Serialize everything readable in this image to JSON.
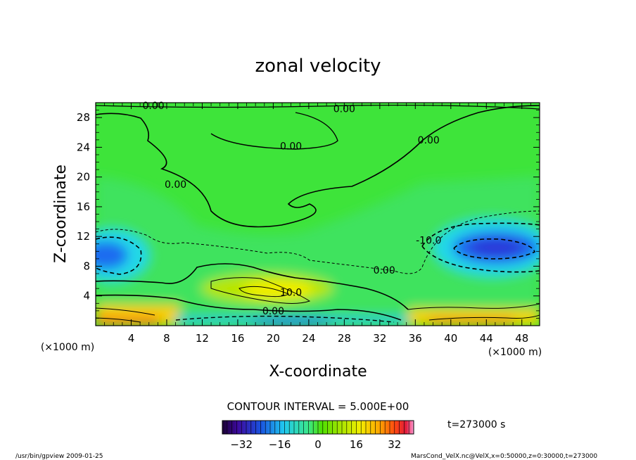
{
  "chart_data": {
    "type": "heatmap",
    "title": "zonal velocity",
    "xlabel": "X-coordinate",
    "ylabel": "Z-coordinate",
    "x_unit_note": "(×1000 m)",
    "y_unit_note": "(×1000 m)",
    "xlim": [
      0,
      50
    ],
    "ylim": [
      0,
      30
    ],
    "x_ticks": [
      4,
      8,
      12,
      16,
      20,
      24,
      28,
      32,
      36,
      40,
      44,
      48
    ],
    "y_ticks": [
      4,
      8,
      12,
      16,
      20,
      24,
      28
    ],
    "contour_interval_text": "CONTOUR INTERVAL = 5.000E+00",
    "time_text": "t=273000 s",
    "colorbar": {
      "range": [
        -40,
        40
      ],
      "ticks": [
        -32,
        -16,
        0,
        16,
        32
      ]
    },
    "contour_labels": [
      {
        "text": "0.00",
        "x": 6.5,
        "y": 29.6
      },
      {
        "text": "0.00",
        "x": 28.0,
        "y": 29.2
      },
      {
        "text": "0.00",
        "x": 22.0,
        "y": 24.2
      },
      {
        "text": "0.00",
        "x": 37.5,
        "y": 25.0
      },
      {
        "text": "0.00",
        "x": 9.0,
        "y": 19.0
      },
      {
        "text": "-10.0",
        "x": 37.5,
        "y": 11.5
      },
      {
        "text": "0.00",
        "x": 32.5,
        "y": 7.5
      },
      {
        "text": "10.0",
        "x": 22.0,
        "y": 4.5
      },
      {
        "text": "0.00",
        "x": 20.0,
        "y": 2.0
      }
    ],
    "features": [
      {
        "kind": "jet",
        "sign": "negative",
        "x": 1.5,
        "y": 9.5,
        "peak": -25
      },
      {
        "kind": "jet",
        "sign": "negative",
        "x": 44.5,
        "y": 10.5,
        "peak": -28
      },
      {
        "kind": "jet",
        "sign": "positive",
        "x": 19.5,
        "y": 4.8,
        "peak": 14
      },
      {
        "kind": "jet",
        "sign": "positive",
        "x": 2.0,
        "y": 1.2,
        "peak": 30
      },
      {
        "kind": "jet",
        "sign": "positive",
        "x": 42.0,
        "y": 1.2,
        "peak": 28
      },
      {
        "kind": "jet",
        "sign": "negative",
        "x": 24.0,
        "y": 0.8,
        "peak": -18
      }
    ]
  },
  "footer": {
    "left": "/usr/bin/gpview   2009-01-25",
    "right": "MarsCond_VelX.nc@VelX,x=0:50000,z=0:30000,t=273000"
  }
}
